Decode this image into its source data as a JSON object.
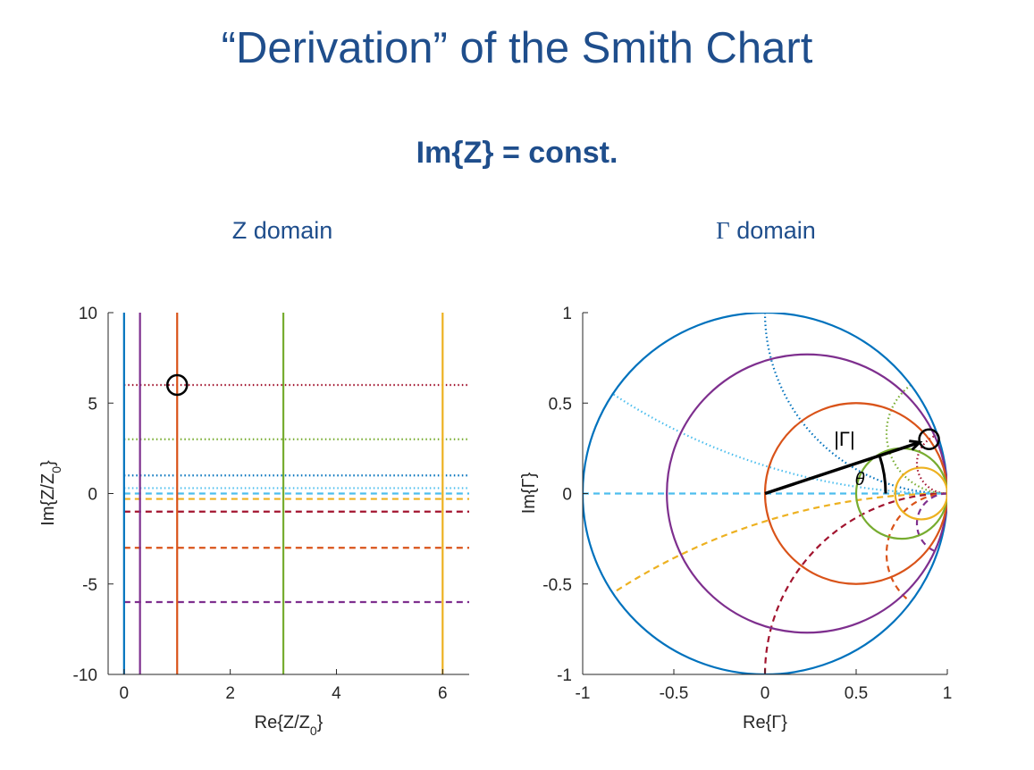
{
  "slide": {
    "title": "“Derivation” of the Smith Chart",
    "subtitle": "Im{Z} = const.",
    "left_panel_title": "Z domain",
    "right_panel_title_symbol": "Γ",
    "right_panel_title_text": " domain"
  },
  "chart_data": [
    {
      "type": "line",
      "xlabel": "Re{Z/Z0}",
      "ylabel": "Im{Z/Z0}",
      "xlim": [
        -0.3,
        6.5
      ],
      "ylim": [
        -10,
        10
      ],
      "xticks": [
        0,
        2,
        4,
        6
      ],
      "yticks": [
        -10,
        -5,
        0,
        5,
        10
      ],
      "grid": false,
      "vertical_lines": [
        {
          "x": 0,
          "color": "#0072bd",
          "style": "solid"
        },
        {
          "x": 0.3,
          "color": "#7e2f8e",
          "style": "solid"
        },
        {
          "x": 1,
          "color": "#d95319",
          "style": "solid"
        },
        {
          "x": 3,
          "color": "#77ac30",
          "style": "solid"
        },
        {
          "x": 6,
          "color": "#edb120",
          "style": "solid"
        }
      ],
      "horizontal_lines": [
        {
          "y": 6,
          "color": "#a2142f",
          "style": "dotted"
        },
        {
          "y": 3,
          "color": "#77ac30",
          "style": "dotted"
        },
        {
          "y": 1,
          "color": "#0072bd",
          "style": "dotted"
        },
        {
          "y": 0.3,
          "color": "#4dbeee",
          "style": "dotted"
        },
        {
          "y": 0,
          "color": "#4dbeee",
          "style": "dashed"
        },
        {
          "y": -0.3,
          "color": "#edb120",
          "style": "dashed"
        },
        {
          "y": -1,
          "color": "#a2142f",
          "style": "dashed"
        },
        {
          "y": -3,
          "color": "#d95319",
          "style": "dashed"
        },
        {
          "y": -6,
          "color": "#7e2f8e",
          "style": "dashed"
        }
      ],
      "marker": {
        "x": 1,
        "y": 6,
        "shape": "circle"
      }
    },
    {
      "type": "line",
      "xlabel": "Re{Γ}",
      "ylabel": "Im{Γ}",
      "xlim": [
        -1,
        1
      ],
      "ylim": [
        -1,
        1
      ],
      "xticks": [
        -1,
        -0.5,
        0,
        0.5,
        1
      ],
      "yticks": [
        -1,
        -0.5,
        0,
        0.5,
        1
      ],
      "xtick_labels": [
        "-1",
        "-0.5",
        "0",
        "0.5",
        "1"
      ],
      "ytick_labels": [
        "-1",
        "-0.5",
        "0",
        "0.5",
        "1"
      ],
      "grid": false,
      "constant_resistance_circles": [
        {
          "r": 0,
          "color": "#0072bd"
        },
        {
          "r": 0.3,
          "color": "#7e2f8e"
        },
        {
          "r": 1,
          "color": "#d95319"
        },
        {
          "r": 3,
          "color": "#77ac30"
        },
        {
          "r": 6,
          "color": "#edb120"
        }
      ],
      "constant_reactance_arcs": [
        {
          "x": 6,
          "color": "#a2142f",
          "style": "dotted"
        },
        {
          "x": 3,
          "color": "#77ac30",
          "style": "dotted"
        },
        {
          "x": 1,
          "color": "#0072bd",
          "style": "dotted"
        },
        {
          "x": 0.3,
          "color": "#4dbeee",
          "style": "dotted"
        },
        {
          "x": 0,
          "color": "#4dbeee",
          "style": "dashed"
        },
        {
          "x": -0.3,
          "color": "#edb120",
          "style": "dashed"
        },
        {
          "x": -1,
          "color": "#a2142f",
          "style": "dashed"
        },
        {
          "x": -3,
          "color": "#d95319",
          "style": "dashed"
        },
        {
          "x": -6,
          "color": "#7e2f8e",
          "style": "dashed"
        }
      ],
      "marker": {
        "z_r": 1,
        "z_x": 6,
        "shape": "circle"
      },
      "annotations": {
        "magnitude": "|Γ|",
        "angle": "θ"
      }
    }
  ]
}
